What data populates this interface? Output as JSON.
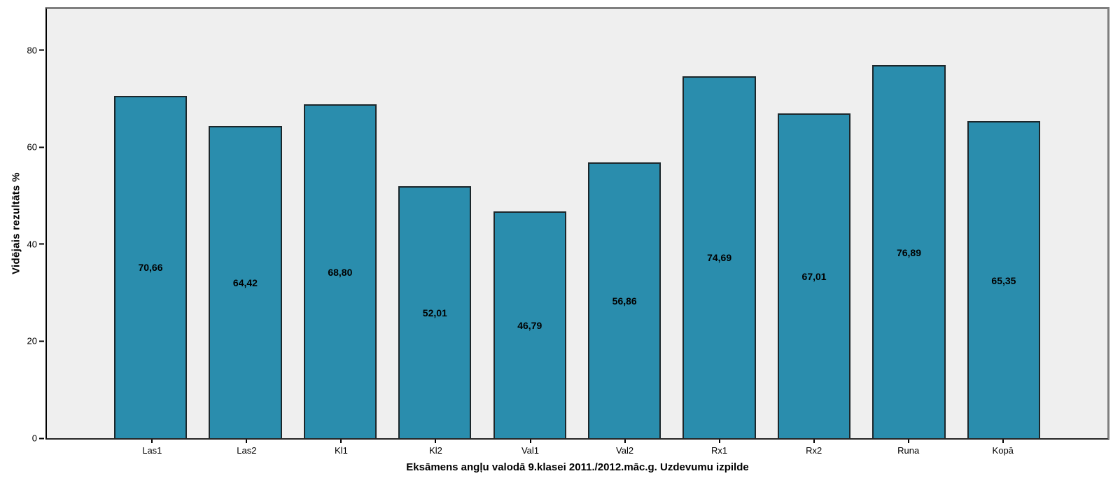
{
  "chart_data": {
    "type": "bar",
    "title": "",
    "categories": [
      "Las1",
      "Las2",
      "Kl1",
      "Kl2",
      "Val1",
      "Val2",
      "Rx1",
      "Rx2",
      "Runa",
      "Kopā"
    ],
    "values": [
      70.66,
      64.42,
      68.8,
      52.01,
      46.79,
      56.86,
      74.69,
      67.01,
      76.89,
      65.35
    ],
    "value_labels": [
      "70,66",
      "64,42",
      "68,80",
      "52,01",
      "46,79",
      "56,86",
      "74,69",
      "67,01",
      "76,89",
      "65,35"
    ],
    "xlabel": "Eksāmens angļu valodā 9.klasei 2011./2012.māc.g. Uzdevumu izpilde",
    "ylabel": "Vidējais rezultāts %",
    "y_ticks": [
      0,
      20,
      40,
      60,
      80
    ],
    "ylim": [
      0,
      88.5
    ],
    "grid": false,
    "legend_position": "none",
    "bar_color": "#2A8DAD",
    "bar_border_color": "#1C272B",
    "plot_background": "#EFEFEF",
    "frame_border_color": "#7F7F7F",
    "axis_color": "#000000"
  }
}
